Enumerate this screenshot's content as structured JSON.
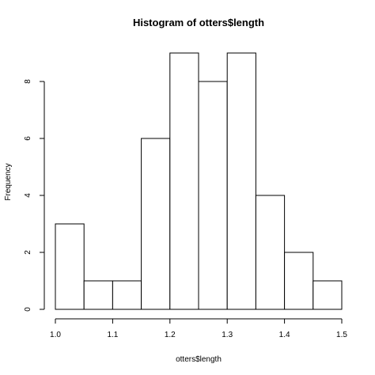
{
  "chart_data": {
    "type": "bar",
    "title": "Histogram of otters$length",
    "xlabel": "otters$length",
    "ylabel": "Frequency",
    "bins": [
      {
        "start": 1.0,
        "end": 1.05,
        "count": 3
      },
      {
        "start": 1.05,
        "end": 1.1,
        "count": 1
      },
      {
        "start": 1.1,
        "end": 1.15,
        "count": 1
      },
      {
        "start": 1.15,
        "end": 1.2,
        "count": 6
      },
      {
        "start": 1.2,
        "end": 1.25,
        "count": 9
      },
      {
        "start": 1.25,
        "end": 1.3,
        "count": 8
      },
      {
        "start": 1.3,
        "end": 1.35,
        "count": 9
      },
      {
        "start": 1.35,
        "end": 1.4,
        "count": 4
      },
      {
        "start": 1.4,
        "end": 1.45,
        "count": 2
      },
      {
        "start": 1.45,
        "end": 1.5,
        "count": 1
      }
    ],
    "x_ticks": [
      "1.0",
      "1.1",
      "1.2",
      "1.3",
      "1.4",
      "1.5"
    ],
    "y_ticks": [
      "0",
      "2",
      "4",
      "6",
      "8"
    ],
    "xlim": [
      1.0,
      1.5
    ],
    "ylim": [
      0,
      9
    ],
    "grid": false,
    "bar_fill": "#ffffff",
    "bar_stroke": "#000000"
  }
}
